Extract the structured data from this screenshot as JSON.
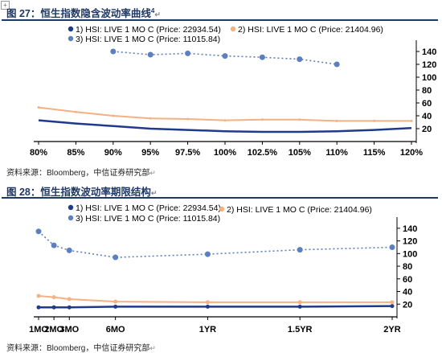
{
  "page": {
    "fig1_title": "图 27：恒生指数隐含波动率曲线",
    "fig1_superscript": "4",
    "fig1_source": "资料来源：Bloomberg，中信证券研究部",
    "fig2_title": "图 28：恒生指数波动率期限结构",
    "fig2_source": "资料来源：Bloomberg，中信证券研究部",
    "paragraph_mark": "↵",
    "corner_mark": "+"
  },
  "chart_data": [
    {
      "type": "line",
      "title": "",
      "xlabel": "",
      "ylabel": "",
      "categories": [
        "80%",
        "85%",
        "90%",
        "95%",
        "97.5%",
        "100%",
        "102.5%",
        "105%",
        "110%",
        "115%",
        "120%"
      ],
      "ylim": [
        0,
        150
      ],
      "yticks": [
        20,
        40,
        60,
        80,
        100,
        120,
        140
      ],
      "legend_position": "top",
      "series": [
        {
          "name": "1)  HSI:  LIVE 1 MO C (Price:  22934.54)",
          "color": "#1f3a8a",
          "style": "solid",
          "marker": "none",
          "values": [
            33,
            28,
            24,
            20,
            18,
            16,
            15,
            15,
            16,
            18,
            21
          ]
        },
        {
          "name": "2)  HSI:  LIVE 1 MO C (Price:  21404.96)",
          "color": "#f4b183",
          "style": "solid",
          "marker": "small-dot",
          "values": [
            53,
            46,
            40,
            36,
            35,
            33,
            34,
            34,
            32,
            32,
            32
          ]
        },
        {
          "name": "3)  HSI:  LIVE 1 MO C (Price:  11015.84)",
          "color": "#5b7fbf",
          "style": "dotted",
          "marker": "dot",
          "values": [
            null,
            null,
            140,
            135,
            137,
            133,
            131,
            128,
            120,
            null,
            null
          ]
        }
      ]
    },
    {
      "type": "line",
      "title": "",
      "xlabel": "",
      "ylabel": "",
      "categories": [
        "1MO",
        "2MO",
        "3MO",
        "6MO",
        "1YR",
        "1.5YR",
        "2YR"
      ],
      "x_months": [
        1,
        2,
        3,
        6,
        12,
        18,
        24
      ],
      "ylim": [
        0,
        150
      ],
      "yticks": [
        20,
        40,
        60,
        80,
        100,
        120,
        140
      ],
      "legend_position": "top",
      "series": [
        {
          "name": "1)  HSI:  LIVE 1 MO C (Price:  22934.54)",
          "color": "#1f3a8a",
          "style": "solid",
          "marker": "dot",
          "values": [
            15,
            15,
            15,
            16,
            16,
            16,
            17
          ]
        },
        {
          "name": "2)  HSI:  LIVE 1 MO C (Price:  21404.96)",
          "color": "#f4b183",
          "style": "solid",
          "marker": "dot",
          "values": [
            33,
            31,
            28,
            24,
            23,
            23,
            23
          ]
        },
        {
          "name": "3)  HSI:  LIVE 1 MO C (Price:  11015.84)",
          "color": "#5b7fbf",
          "style": "dotted",
          "marker": "dot",
          "values": [
            135,
            113,
            105,
            94,
            99,
            106,
            110
          ]
        }
      ]
    }
  ]
}
